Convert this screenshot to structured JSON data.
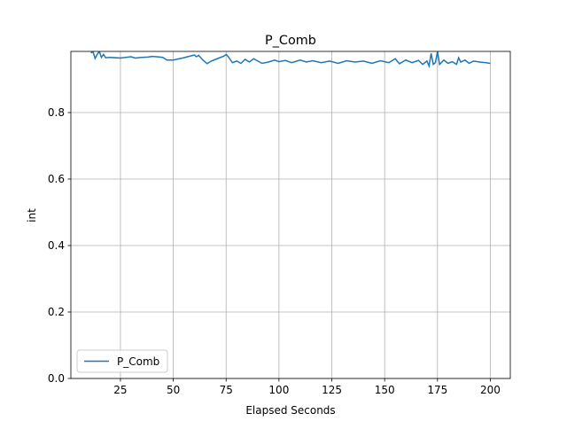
{
  "chart_data": {
    "type": "line",
    "title": "P_Comb",
    "x_label": "Elapsed Seconds",
    "y_label": "int",
    "x": [
      11,
      12,
      13,
      14,
      15,
      16,
      17,
      18,
      20,
      25,
      30,
      32,
      35,
      38,
      40,
      42,
      45,
      47,
      50,
      55,
      58,
      60,
      61,
      62,
      64,
      66,
      68,
      70,
      72,
      74,
      75,
      76,
      78,
      80,
      82,
      84,
      86,
      88,
      90,
      92,
      95,
      98,
      100,
      103,
      106,
      110,
      113,
      116,
      120,
      124,
      128,
      132,
      136,
      140,
      144,
      148,
      152,
      155,
      157,
      160,
      163,
      166,
      168,
      170,
      171,
      172,
      173,
      174,
      175,
      176,
      178,
      180,
      182,
      184,
      185,
      186,
      188,
      190,
      192,
      195,
      198,
      200
    ],
    "series": [
      {
        "name": "P_Comb",
        "color": "#1f77b4",
        "values": [
          0.979,
          0.984,
          0.963,
          0.975,
          0.984,
          0.966,
          0.975,
          0.965,
          0.966,
          0.964,
          0.968,
          0.964,
          0.966,
          0.967,
          0.969,
          0.968,
          0.966,
          0.958,
          0.958,
          0.965,
          0.97,
          0.973,
          0.968,
          0.972,
          0.958,
          0.947,
          0.955,
          0.96,
          0.965,
          0.97,
          0.975,
          0.968,
          0.95,
          0.955,
          0.948,
          0.96,
          0.952,
          0.962,
          0.955,
          0.948,
          0.952,
          0.958,
          0.953,
          0.957,
          0.95,
          0.958,
          0.952,
          0.956,
          0.95,
          0.955,
          0.948,
          0.956,
          0.952,
          0.955,
          0.948,
          0.956,
          0.95,
          0.962,
          0.947,
          0.958,
          0.95,
          0.957,
          0.945,
          0.955,
          0.94,
          0.978,
          0.945,
          0.95,
          0.984,
          0.945,
          0.958,
          0.948,
          0.953,
          0.945,
          0.965,
          0.952,
          0.958,
          0.948,
          0.955,
          0.952,
          0.95,
          0.948
        ]
      }
    ],
    "xlim": [
      1.55,
      209.45
    ],
    "ylim": [
      0,
      0.984
    ],
    "xticks": [
      25,
      50,
      75,
      100,
      125,
      150,
      175,
      200
    ],
    "yticks": [
      {
        "value": 0,
        "label": "0.0"
      },
      0.2,
      0.4,
      0.6,
      0.8
    ],
    "grid": true,
    "legend": "lower left"
  }
}
